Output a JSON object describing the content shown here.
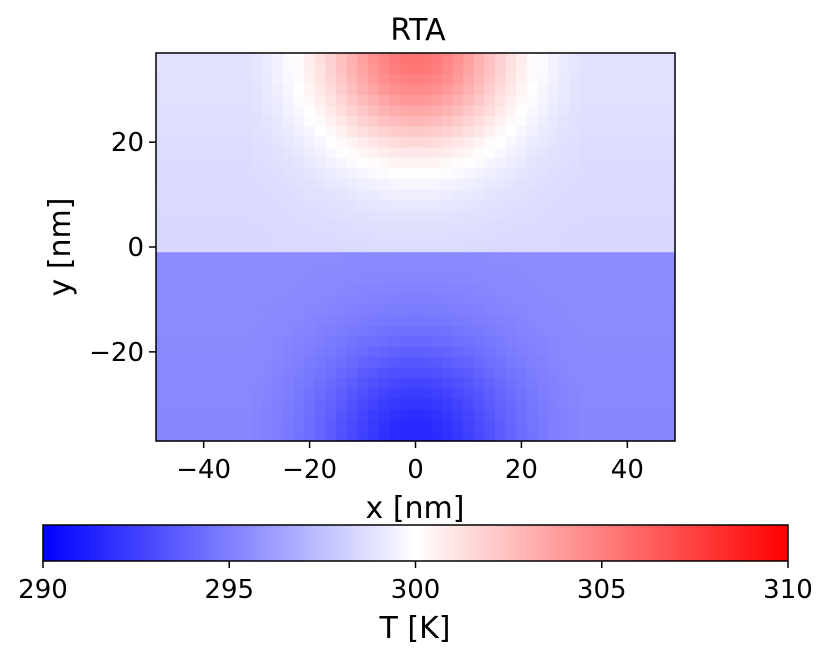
{
  "chart_data": {
    "type": "heatmap",
    "title": "RTA",
    "xlabel": "x [nm]",
    "ylabel": "y [nm]",
    "xlim": [
      -49,
      49
    ],
    "ylim": [
      -37,
      37
    ],
    "x_ticks": [
      -40,
      -20,
      0,
      20,
      40
    ],
    "x_tick_labels": [
      "−40",
      "−20",
      "0",
      "20",
      "40"
    ],
    "y_ticks": [
      -20,
      0,
      20
    ],
    "y_tick_labels": [
      "−20",
      "0",
      "20"
    ],
    "grid": false,
    "colormap": "bwr",
    "colormap_colors": [
      "#0000ff",
      "#ffffff",
      "#ff0000"
    ],
    "colorbar": {
      "label": "T [K]",
      "orientation": "horizontal",
      "placement": "bottom",
      "range": [
        290,
        310
      ],
      "ticks": [
        290,
        295,
        300,
        305,
        310
      ],
      "tick_labels": [
        "290",
        "295",
        "300",
        "305",
        "310"
      ]
    },
    "grid_size": {
      "nx": 49,
      "ny": 37
    },
    "field_description": {
      "upper_region": {
        "y_range": [
          0,
          37
        ],
        "background_T": 298.5,
        "hot_spot_center": [
          0,
          37
        ],
        "hot_spot_peak_T": 305.5,
        "hot_spot_half_width_x": 20
      },
      "lower_region": {
        "y_range": [
          -37,
          0
        ],
        "background_T": 295.5,
        "cold_spot_center": [
          0,
          -37
        ],
        "cold_spot_min_T": 291.5,
        "cold_spot_half_width_x": 20
      }
    }
  }
}
